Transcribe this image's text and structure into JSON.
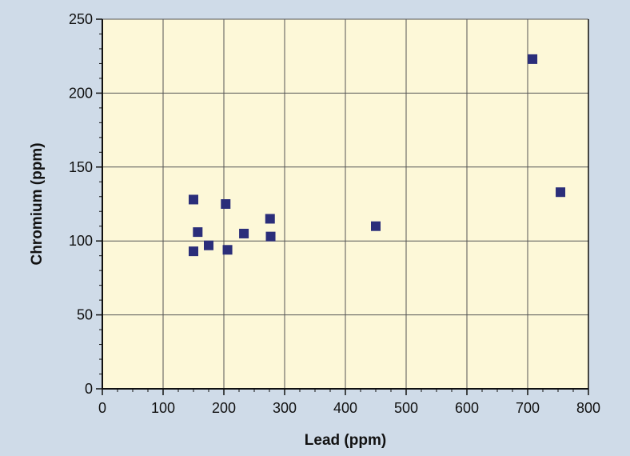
{
  "chart_data": {
    "type": "scatter",
    "title": "",
    "xlabel": "Lead (ppm)",
    "ylabel": "Chromium (ppm)",
    "xlim": [
      0,
      800
    ],
    "ylim": [
      0,
      250
    ],
    "x_ticks": [
      0,
      100,
      200,
      300,
      400,
      500,
      600,
      700,
      800
    ],
    "y_ticks": [
      0,
      50,
      100,
      150,
      200,
      250
    ],
    "x_tick_labels": [
      "0",
      "100",
      "200",
      "300",
      "400",
      "500",
      "600",
      "700",
      "800"
    ],
    "y_tick_labels": [
      "0",
      "50",
      "100",
      "150",
      "200",
      "250"
    ],
    "grid": true,
    "legend": "none",
    "colors": {
      "background": "#cfdbe8",
      "plot_area": "#fdf8d8",
      "marker": "#2b2e7a",
      "grid": "#555555",
      "axis": "#111111"
    },
    "series": [
      {
        "marker": "square",
        "points": [
          {
            "x": 150,
            "y": 128
          },
          {
            "x": 157,
            "y": 106
          },
          {
            "x": 150,
            "y": 93
          },
          {
            "x": 175,
            "y": 97
          },
          {
            "x": 203,
            "y": 125
          },
          {
            "x": 206,
            "y": 94
          },
          {
            "x": 233,
            "y": 105
          },
          {
            "x": 276,
            "y": 115
          },
          {
            "x": 277,
            "y": 103
          },
          {
            "x": 450,
            "y": 110
          },
          {
            "x": 708,
            "y": 223
          },
          {
            "x": 754,
            "y": 133
          }
        ]
      }
    ]
  }
}
